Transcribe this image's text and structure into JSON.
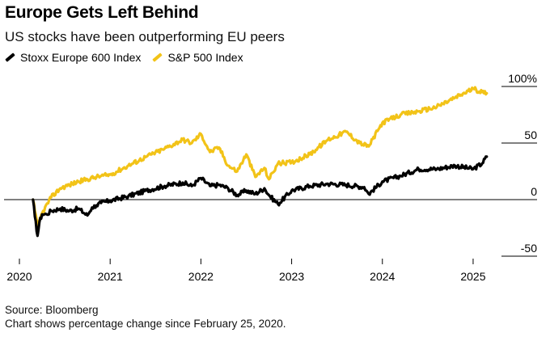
{
  "title": "Europe Gets Left Behind",
  "subtitle": "US stocks have been outperforming EU peers",
  "legend": [
    {
      "label": "Stoxx Europe 600 Index",
      "color": "#000000"
    },
    {
      "label": "S&P 500 Index",
      "color": "#f2c318"
    }
  ],
  "footer": {
    "source": "Source: Bloomberg",
    "note": "Chart shows percentage change since February 25, 2020."
  },
  "chart_data": {
    "type": "line",
    "x_tick_labels": [
      "2020",
      "2021",
      "2022",
      "2023",
      "2024",
      "2025"
    ],
    "x_ticks": [
      2020,
      2021,
      2022,
      2023,
      2024,
      2025
    ],
    "y_tick_labels": [
      "100%",
      "50",
      "0",
      "-50"
    ],
    "y_ticks": [
      100,
      50,
      0,
      -50
    ],
    "xlim": [
      2020.0,
      2025.25
    ],
    "ylim": [
      -55,
      110
    ],
    "zero_line": true,
    "series": [
      {
        "name": "Stoxx Europe 600 Index",
        "color": "#000000",
        "x": [
          2020.15,
          2020.17,
          2020.2,
          2020.22,
          2020.25,
          2020.3,
          2020.35,
          2020.45,
          2020.55,
          2020.65,
          2020.75,
          2020.8,
          2020.85,
          2020.9,
          2021.0,
          2021.2,
          2021.4,
          2021.6,
          2021.8,
          2021.9,
          2022.0,
          2022.1,
          2022.2,
          2022.3,
          2022.4,
          2022.5,
          2022.6,
          2022.7,
          2022.75,
          2022.85,
          2023.0,
          2023.2,
          2023.4,
          2023.6,
          2023.8,
          2023.85,
          2024.0,
          2024.2,
          2024.4,
          2024.6,
          2024.8,
          2025.0,
          2025.1,
          2025.15
        ],
        "values": [
          0,
          -15,
          -32,
          -20,
          -13,
          -13,
          -10,
          -8,
          -10,
          -8,
          -14,
          -7,
          -5,
          -3,
          -1,
          3,
          8,
          12,
          15,
          12,
          19,
          12,
          13,
          10,
          4,
          8,
          5,
          10,
          4,
          -4,
          8,
          12,
          14,
          13,
          11,
          5,
          16,
          21,
          27,
          27,
          30,
          27,
          32,
          38
        ]
      },
      {
        "name": "S&P 500 Index",
        "color": "#f2c318",
        "x": [
          2020.15,
          2020.17,
          2020.2,
          2020.25,
          2020.35,
          2020.45,
          2020.55,
          2020.65,
          2020.75,
          2020.85,
          2021.0,
          2021.2,
          2021.4,
          2021.6,
          2021.8,
          2021.9,
          2022.0,
          2022.1,
          2022.2,
          2022.3,
          2022.4,
          2022.5,
          2022.6,
          2022.7,
          2022.75,
          2022.85,
          2023.0,
          2023.2,
          2023.4,
          2023.6,
          2023.75,
          2023.85,
          2024.0,
          2024.2,
          2024.4,
          2024.6,
          2024.8,
          2025.0,
          2025.1,
          2025.15
        ],
        "values": [
          0,
          -10,
          -24,
          -12,
          2,
          10,
          13,
          16,
          18,
          20,
          22,
          30,
          38,
          45,
          53,
          50,
          58,
          42,
          46,
          30,
          25,
          40,
          20,
          28,
          18,
          32,
          33,
          40,
          53,
          60,
          50,
          47,
          68,
          75,
          78,
          82,
          90,
          98,
          95,
          94
        ]
      }
    ]
  }
}
